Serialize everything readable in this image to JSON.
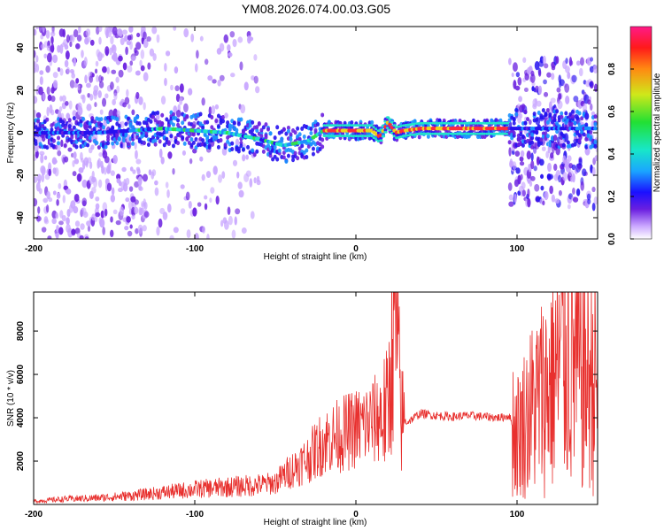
{
  "chart_data": [
    {
      "type": "heatmap",
      "title": "YM08.2026.074.00.03.G05",
      "xlabel": "Height of straight line (km)",
      "ylabel": "Frequency (Hz)",
      "xlim": [
        -200,
        150
      ],
      "ylim": [
        -50,
        50
      ],
      "xticks": [
        -200,
        -100,
        0,
        100
      ],
      "yticks": [
        -40,
        -20,
        0,
        20,
        40
      ],
      "colorbar": {
        "label": "Normalized spectral amplitude",
        "range": [
          0.0,
          1.0
        ],
        "ticks": [
          0.0,
          0.2,
          0.4,
          0.6,
          0.8
        ]
      },
      "ridge": {
        "x": [
          -160,
          -140,
          -120,
          -100,
          -80,
          -60,
          -45,
          -30,
          -20,
          -10,
          0,
          10,
          15,
          20,
          25,
          30,
          40,
          60,
          80,
          95
        ],
        "frequency": [
          0,
          1,
          2,
          1,
          0,
          -3,
          -6,
          -4,
          1,
          1,
          1,
          1,
          -2,
          5,
          0,
          1,
          2,
          2,
          2,
          2
        ]
      }
    },
    {
      "type": "line",
      "xlabel": "Height of straight line (km)",
      "ylabel": "SNR (10 * v/v)",
      "xlim": [
        -200,
        150
      ],
      "ylim": [
        0,
        9800
      ],
      "xticks": [
        -200,
        -100,
        0,
        100
      ],
      "yticks": [
        2000,
        4000,
        6000,
        8000
      ],
      "series": [
        {
          "name": "SNR",
          "color": "#e8302e",
          "x": [
            -200,
            -180,
            -160,
            -140,
            -120,
            -100,
            -80,
            -60,
            -50,
            -40,
            -30,
            -20,
            -10,
            0,
            10,
            20,
            22,
            25,
            28,
            32,
            40,
            50,
            60,
            70,
            80,
            90,
            95,
            100,
            110,
            120,
            130,
            140,
            150
          ],
          "y": [
            150,
            250,
            300,
            400,
            550,
            700,
            800,
            900,
            1000,
            1600,
            2100,
            2900,
            3200,
            3500,
            3800,
            4300,
            7200,
            8400,
            3900,
            3800,
            4200,
            4100,
            4050,
            4100,
            4050,
            4000,
            4100,
            3200,
            4500,
            5500,
            7000,
            6000,
            5800
          ]
        }
      ]
    }
  ]
}
